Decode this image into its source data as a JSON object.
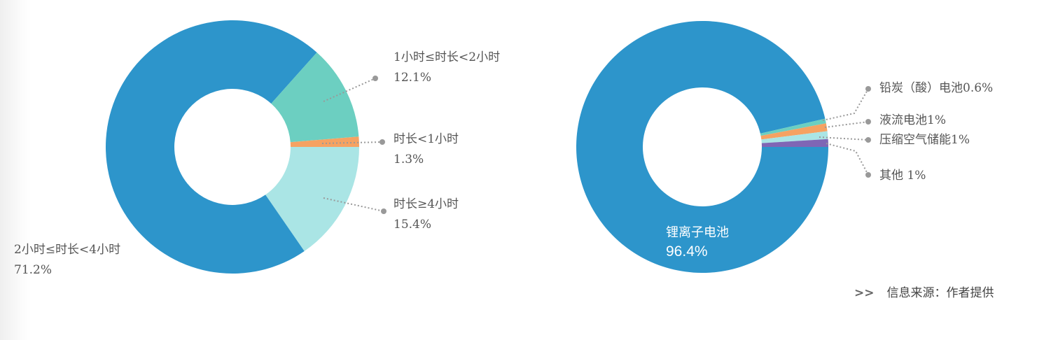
{
  "chart_data": [
    {
      "type": "pie",
      "donut": true,
      "slices": [
        {
          "label": "时长≥4小时",
          "value": 15.4,
          "value_label": "15.4%",
          "color": "#aae5e5"
        },
        {
          "label": "2小时≤时长<4小时",
          "value": 71.2,
          "value_label": "71.2%",
          "color": "#2d95cb"
        },
        {
          "label": "1小时≤时长<2小时",
          "value": 12.1,
          "value_label": "12.1%",
          "color": "#6ccfc1"
        },
        {
          "label": "时长<1小时",
          "value": 1.3,
          "value_label": "1.3%",
          "color": "#f6a262"
        }
      ]
    },
    {
      "type": "pie",
      "donut": true,
      "slices": [
        {
          "label": "锂离子电池",
          "value": 96.4,
          "value_label": "96.4%",
          "color": "#2d95cb"
        },
        {
          "label": "铅炭（酸）电池0.6%",
          "value": 0.6,
          "color": "#6ccfc1"
        },
        {
          "label": "液流电池1%",
          "value": 1,
          "color": "#f6a262"
        },
        {
          "label": "压缩空气储能1%",
          "value": 1,
          "color": "#aae5e5"
        },
        {
          "label": "其他 1%",
          "value": 1,
          "color": "#7f66b5"
        }
      ]
    }
  ],
  "source": {
    "arrow": ">>",
    "text": "信息来源：作者提供"
  }
}
